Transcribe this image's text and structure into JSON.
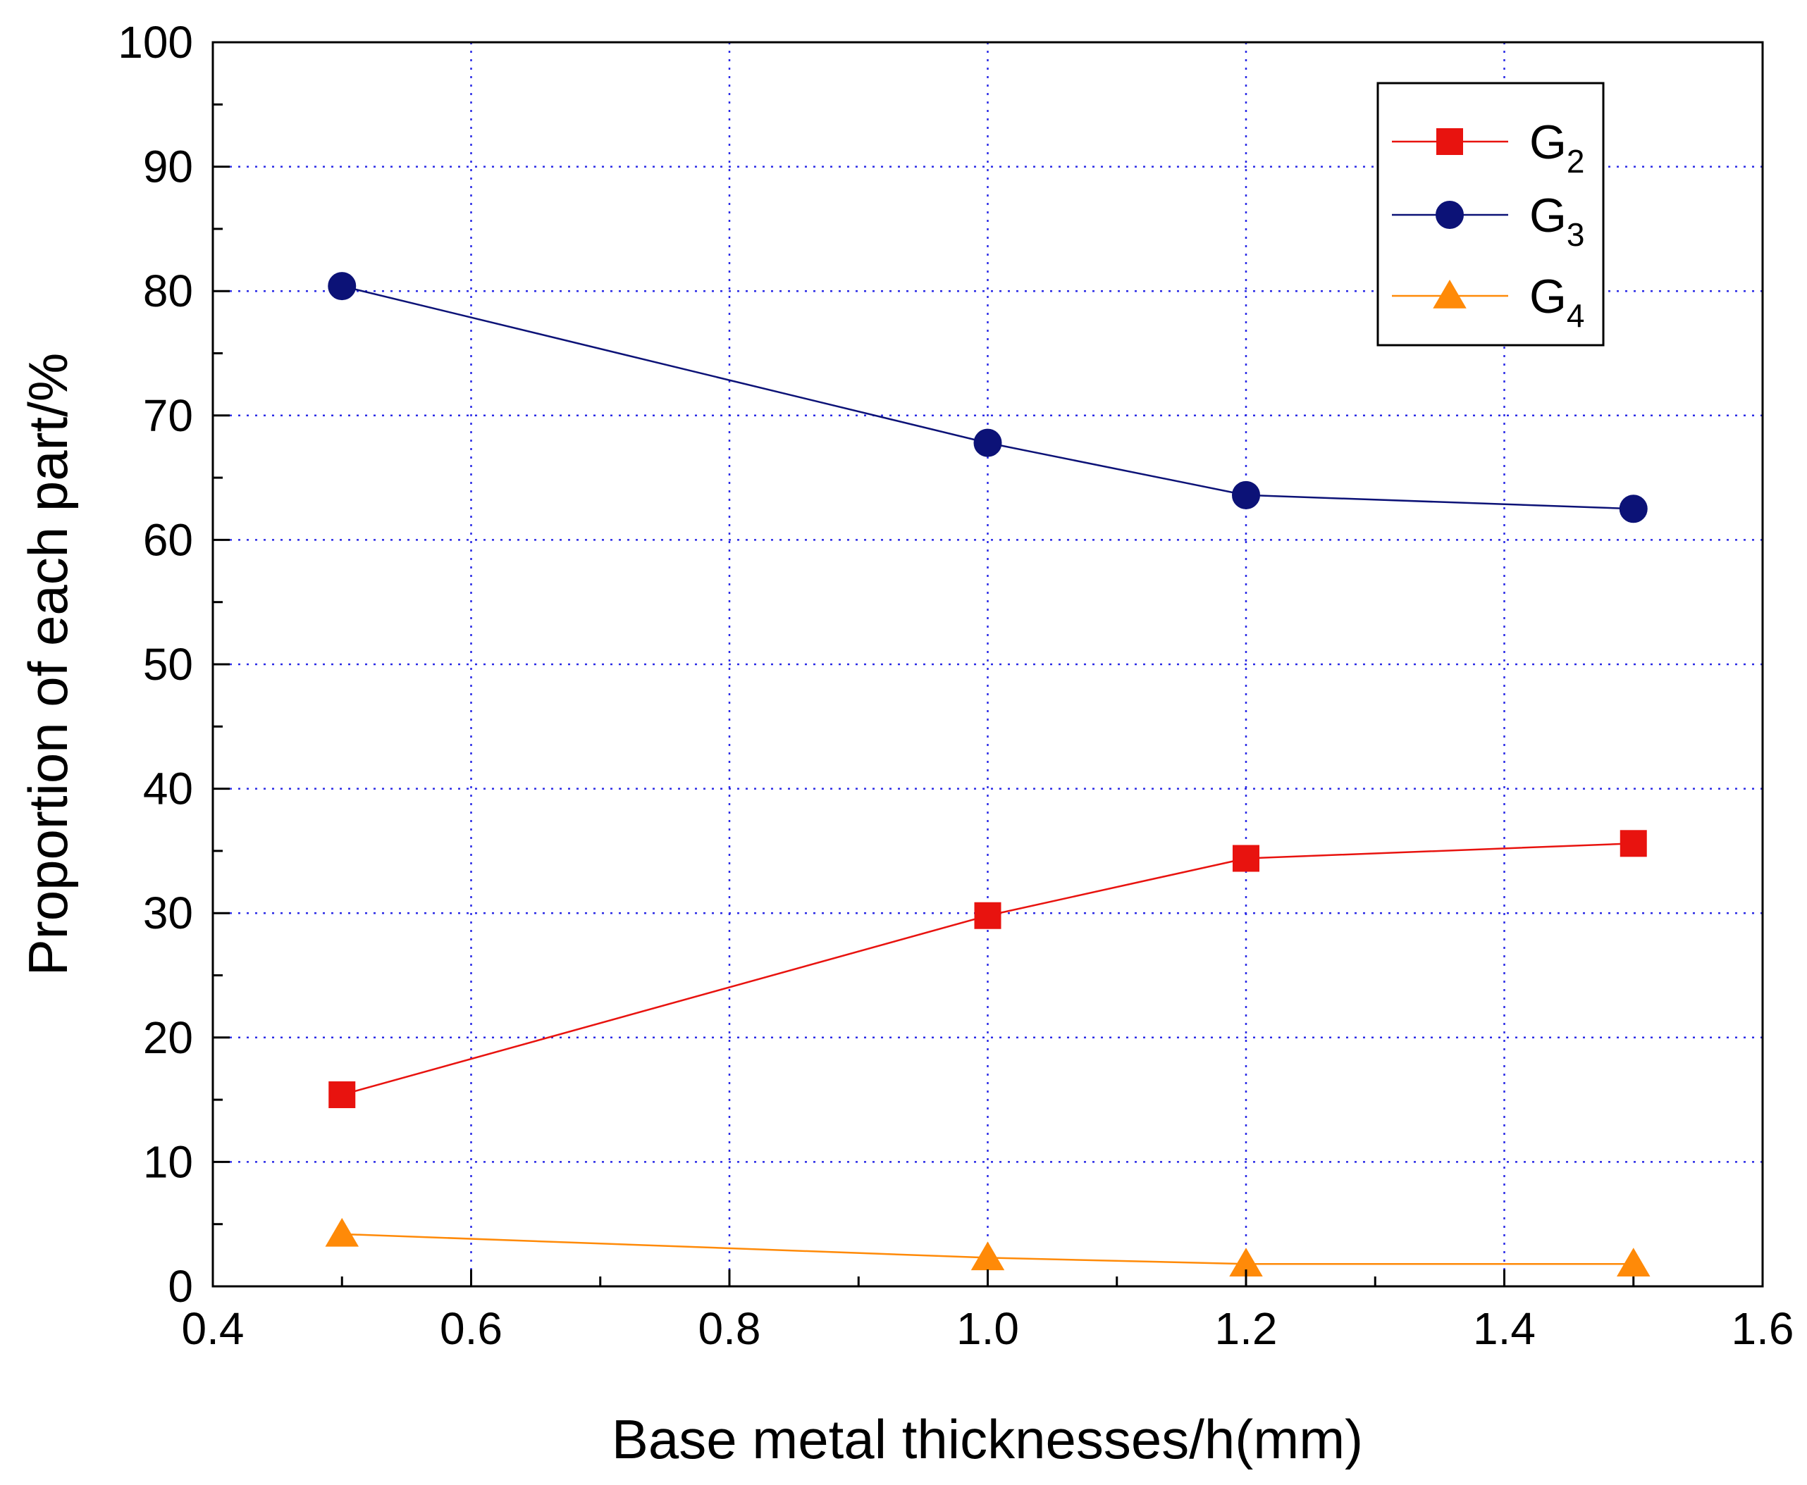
{
  "chart_data": {
    "type": "line",
    "title": "",
    "xlabel": "Base metal thicknesses/h(mm)",
    "ylabel": "Proportion of each part/%",
    "xlim": [
      0.4,
      1.6
    ],
    "ylim": [
      0,
      100
    ],
    "x_major_ticks": [
      0.4,
      0.6,
      0.8,
      1.0,
      1.2,
      1.4,
      1.6
    ],
    "x_tick_labels": [
      "0.4",
      "0.6",
      "0.8",
      "1.0",
      "1.2",
      "1.4",
      "1.6"
    ],
    "x_minor_step": 0.1,
    "y_major_ticks": [
      0,
      10,
      20,
      30,
      40,
      50,
      60,
      70,
      80,
      90,
      100
    ],
    "y_tick_labels": [
      "0",
      "10",
      "20",
      "30",
      "40",
      "50",
      "60",
      "70",
      "80",
      "90",
      "100"
    ],
    "y_minor_step": 5,
    "grid": true,
    "legend_position": "top-right",
    "x": [
      0.5,
      1.0,
      1.2,
      1.5
    ],
    "series": [
      {
        "name": "G2",
        "label_main": "G",
        "label_sub": "2",
        "marker": "square",
        "color": "#e8130f",
        "values": [
          15.4,
          29.8,
          34.4,
          35.6
        ]
      },
      {
        "name": "G3",
        "label_main": "G",
        "label_sub": "3",
        "marker": "circle",
        "color": "#0c1277",
        "values": [
          80.4,
          67.8,
          63.6,
          62.5
        ]
      },
      {
        "name": "G4",
        "label_main": "G",
        "label_sub": "4",
        "marker": "triangle",
        "color": "#ff8a08",
        "values": [
          4.2,
          2.3,
          1.8,
          1.8
        ]
      }
    ]
  }
}
